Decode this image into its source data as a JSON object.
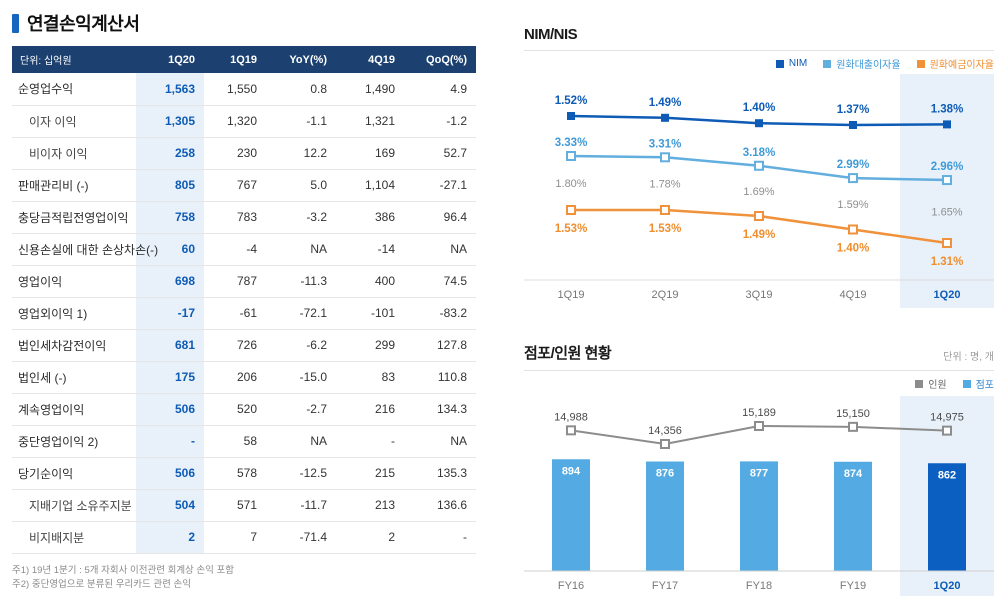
{
  "page": {
    "title": "연결손익계산서"
  },
  "table": {
    "headers": [
      "단위: 십억원",
      "1Q20",
      "1Q19",
      "YoY(%)",
      "4Q19",
      "QoQ(%)"
    ],
    "rows": [
      {
        "label": "순영업수익",
        "indent": false,
        "values": [
          "1,563",
          "1,550",
          "0.8",
          "1,490",
          "4.9"
        ]
      },
      {
        "label": "이자 이익",
        "indent": true,
        "values": [
          "1,305",
          "1,320",
          "-1.1",
          "1,321",
          "-1.2"
        ]
      },
      {
        "label": "비이자 이익",
        "indent": true,
        "values": [
          "258",
          "230",
          "12.2",
          "169",
          "52.7"
        ]
      },
      {
        "label": "판매관리비 (-)",
        "indent": false,
        "values": [
          "805",
          "767",
          "5.0",
          "1,104",
          "-27.1"
        ]
      },
      {
        "label": "충당금적립전영업이익",
        "indent": false,
        "values": [
          "758",
          "783",
          "-3.2",
          "386",
          "96.4"
        ]
      },
      {
        "label": "신용손실에 대한 손상차손(-)",
        "indent": false,
        "values": [
          "60",
          "-4",
          "NA",
          "-14",
          "NA"
        ]
      },
      {
        "label": "영업이익",
        "indent": false,
        "values": [
          "698",
          "787",
          "-11.3",
          "400",
          "74.5"
        ]
      },
      {
        "label": "영업외이익 1)",
        "indent": false,
        "values": [
          "-17",
          "-61",
          "-72.1",
          "-101",
          "-83.2"
        ]
      },
      {
        "label": "법인세차감전이익",
        "indent": false,
        "values": [
          "681",
          "726",
          "-6.2",
          "299",
          "127.8"
        ]
      },
      {
        "label": "법인세 (-)",
        "indent": false,
        "values": [
          "175",
          "206",
          "-15.0",
          "83",
          "110.8"
        ]
      },
      {
        "label": "계속영업이익",
        "indent": false,
        "values": [
          "506",
          "520",
          "-2.7",
          "216",
          "134.3"
        ]
      },
      {
        "label": "중단영업이익 2)",
        "indent": false,
        "values": [
          "-",
          "58",
          "NA",
          "-",
          "NA"
        ]
      },
      {
        "label": "당기순이익",
        "indent": false,
        "values": [
          "506",
          "578",
          "-12.5",
          "215",
          "135.3"
        ]
      },
      {
        "label": "지배기업 소유주지분",
        "indent": true,
        "values": [
          "504",
          "571",
          "-11.7",
          "213",
          "136.6"
        ]
      },
      {
        "label": "비지배지분",
        "indent": true,
        "values": [
          "2",
          "7",
          "-71.4",
          "2",
          "-"
        ]
      }
    ],
    "footnotes": [
      "주1) 19년 1분기 : 5개 자회사 이전관련 회계상 손익 포함",
      "주2) 중단영업으로 분류된 우리카드 관련 손익"
    ]
  },
  "chart_data": [
    {
      "type": "line",
      "title": "NIM/NIS",
      "categories": [
        "1Q19",
        "2Q19",
        "3Q19",
        "4Q19",
        "1Q20"
      ],
      "highlight_category": "1Q20",
      "highlight_bg": "#e8f1fa",
      "legend_position": "top-right",
      "grid": false,
      "series": [
        {
          "name": "NIM",
          "in_legend": true,
          "marker": "filled",
          "color": "#0d5bb5",
          "label_color": "#0d5bb5",
          "values": [
            1.52,
            1.49,
            1.4,
            1.37,
            1.38
          ],
          "labels": [
            "1.52%",
            "1.49%",
            "1.40%",
            "1.37%",
            "1.38%"
          ]
        },
        {
          "name": "원화대출이자율",
          "in_legend": true,
          "marker": "hollow",
          "color": "#62aede",
          "label_color": "#3f9ad8",
          "values": [
            3.33,
            3.31,
            3.18,
            2.99,
            2.96
          ],
          "labels": [
            "3.33%",
            "3.31%",
            "3.18%",
            "2.99%",
            "2.96%"
          ]
        },
        {
          "name": "원화예금이자율",
          "in_legend": true,
          "marker": "hollow",
          "color": "#f0913b",
          "label_color": "#ef8e2f",
          "values": [
            1.53,
            1.53,
            1.49,
            1.4,
            1.31
          ],
          "labels": [
            "1.53%",
            "1.53%",
            "1.49%",
            "1.40%",
            "1.31%"
          ]
        },
        {
          "name": "NIS",
          "in_legend": false,
          "marker": "none",
          "color": "#8f8f8f",
          "label_color": "#8f8f8f",
          "values": [
            1.8,
            1.78,
            1.69,
            1.59,
            1.65
          ],
          "labels": [
            "1.80%",
            "1.78%",
            "1.69%",
            "1.59%",
            "1.65%"
          ]
        }
      ]
    },
    {
      "type": "bar+line",
      "title": "점포/인원 현황",
      "unit_label": "단위 : 명, 개",
      "categories": [
        "FY16",
        "FY17",
        "FY18",
        "FY19",
        "1Q20"
      ],
      "highlight_category": "1Q20",
      "highlight_bg": "#e8f1fa",
      "legend_position": "top-right",
      "grid": false,
      "series": [
        {
          "name": "인원",
          "type": "line",
          "in_legend": true,
          "marker": "hollow",
          "color": "#8c8c8c",
          "label_color": "#666666",
          "values": [
            14988,
            14356,
            15189,
            15150,
            14975
          ],
          "labels": [
            "14,988",
            "14,356",
            "15,189",
            "15,150",
            "14,975"
          ]
        },
        {
          "name": "점포",
          "type": "bar",
          "in_legend": true,
          "color": "#54abe3",
          "highlight_color": "#0a5fc0",
          "label_color": "#2f86d2",
          "values": [
            894,
            876,
            877,
            874,
            862
          ],
          "labels": [
            "894",
            "876",
            "877",
            "874",
            "862"
          ]
        }
      ]
    }
  ]
}
